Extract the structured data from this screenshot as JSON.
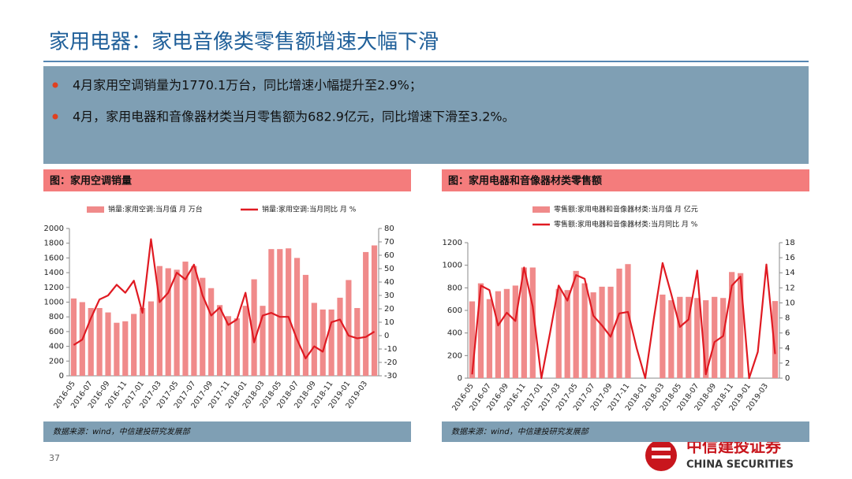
{
  "header": {
    "title": "家用电器：家电音像类零售额增速大幅下滑",
    "bullets": [
      "4月家用空调销量为1770.1万台，同比增速小幅提升至2.9%；",
      "4月，家用电器和音像器材类当月零售额为682.9亿元，同比增速下滑至3.2%。"
    ]
  },
  "chart_data": [
    {
      "type": "combo",
      "title": "图：家用空调销量",
      "source": "数据来源：wind，中信建投研究发展部",
      "categories": [
        "2016-05",
        null,
        "2016-07",
        null,
        "2016-09",
        null,
        "2016-11",
        null,
        "2017-01",
        null,
        "2017-03",
        null,
        "2017-05",
        null,
        "2017-07",
        null,
        "2017-09",
        null,
        "2017-11",
        null,
        "2018-01",
        null,
        "2018-03",
        null,
        "2018-05",
        null,
        "2018-07",
        null,
        "2018-09",
        null,
        "2018-11",
        null,
        "2019-01",
        null,
        "2019-03",
        null
      ],
      "series": [
        {
          "name": "销量:家用空调:当月值 月 万台",
          "kind": "bar",
          "color": "#f08a8a",
          "values": [
            1050,
            1000,
            920,
            920,
            860,
            720,
            740,
            840,
            920,
            1010,
            1490,
            1460,
            1440,
            1550,
            1490,
            1330,
            1190,
            960,
            810,
            780,
            950,
            1310,
            950,
            1720,
            1720,
            1730,
            1600,
            1370,
            990,
            900,
            900,
            1060,
            1300,
            920,
            1680,
            1770
          ]
        },
        {
          "name": "销量:家用空调:当月同比 月 %",
          "kind": "line",
          "axis": "y2",
          "color": "#e01a22",
          "values": [
            -7,
            -3,
            13,
            27,
            30,
            38,
            32,
            41,
            17,
            72,
            25,
            32,
            47,
            42,
            53,
            30,
            15,
            21,
            8,
            12,
            32,
            -5,
            15,
            17,
            14,
            14,
            -3,
            -17,
            -8,
            -12,
            10,
            12,
            0,
            -2,
            -1,
            3
          ]
        }
      ],
      "ylim": [
        0,
        2000
      ],
      "yticks": [
        0,
        200,
        400,
        600,
        800,
        1000,
        1200,
        1400,
        1600,
        1800,
        2000
      ],
      "y2lim": [
        -30,
        80
      ],
      "y2ticks": [
        -30,
        -20,
        -10,
        0,
        10,
        20,
        30,
        40,
        50,
        60,
        70,
        80
      ]
    },
    {
      "type": "combo",
      "title": "图：家用电器和音像器材类零售额",
      "source": "数据来源：wind，中信建投研究发展部",
      "categories": [
        "2016-05",
        null,
        "2016-07",
        null,
        "2016-09",
        null,
        "2016-11",
        null,
        "2017-01",
        null,
        "2017-03",
        null,
        "2017-05",
        null,
        "2017-07",
        null,
        "2017-09",
        null,
        "2017-11",
        null,
        "2018-01",
        null,
        "2018-03",
        null,
        "2018-05",
        null,
        "2018-07",
        null,
        "2018-09",
        null,
        "2018-11",
        null,
        "2019-01",
        null,
        "2019-03",
        null
      ],
      "series": [
        {
          "name": "零售额:家用电器和音像器材类:当月值 月 亿元",
          "kind": "bar",
          "color": "#f08a8a",
          "values": [
            680,
            840,
            700,
            770,
            790,
            820,
            980,
            980,
            null,
            null,
            790,
            780,
            950,
            840,
            760,
            810,
            810,
            970,
            1010,
            null,
            null,
            null,
            740,
            690,
            720,
            720,
            710,
            690,
            720,
            710,
            940,
            930,
            null,
            null,
            null,
            683
          ]
        },
        {
          "name": "零售额:家用电器和音像器材类:当月同比 月 %",
          "kind": "line",
          "axis": "y2",
          "color": "#e01a22",
          "values": [
            0.5,
            12.3,
            11.7,
            7,
            8.7,
            7.6,
            14.7,
            9.5,
            0,
            6,
            12.3,
            10.3,
            13.7,
            13.2,
            8.3,
            7,
            5.5,
            8.6,
            8.8,
            4,
            0,
            8,
            15.3,
            11.2,
            6.8,
            7.8,
            14.3,
            0.5,
            4.8,
            5.6,
            12.3,
            13.5,
            0,
            3.5,
            15.1,
            3.2
          ]
        }
      ],
      "ylim": [
        0,
        1200
      ],
      "yticks": [
        0,
        200,
        400,
        600,
        800,
        1000,
        1200
      ],
      "y2lim": [
        0,
        18
      ],
      "y2ticks": [
        0,
        2,
        4,
        6,
        8,
        10,
        12,
        14,
        16,
        18
      ]
    }
  ],
  "footer": {
    "page_number": "37",
    "logo_cn": "中信建投证券",
    "logo_en": "CHINA SECURITIES"
  }
}
